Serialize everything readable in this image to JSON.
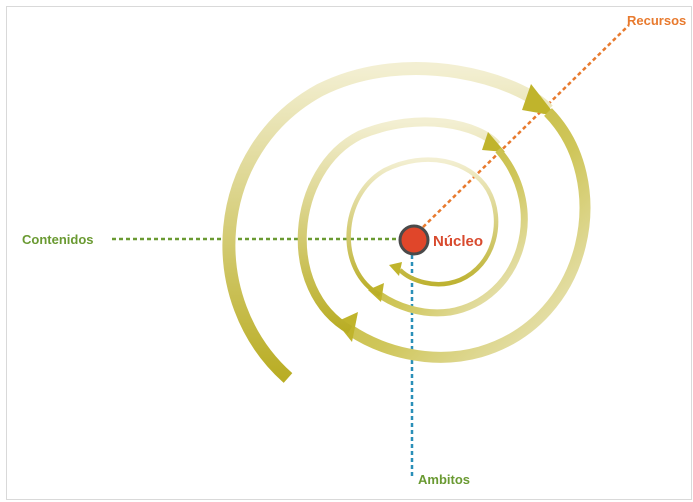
{
  "diagram": {
    "center_label": "Núcleo",
    "axes": [
      {
        "id": "recursos",
        "label": "Recursos",
        "color": "#e87a2e"
      },
      {
        "id": "contenidos",
        "label": "Contenidos",
        "color": "#6a9a32"
      },
      {
        "id": "ambitos",
        "label": "Ambitos",
        "color": "#2a8fb8"
      }
    ],
    "colors": {
      "spiral_dark": "#c0b42c",
      "spiral_light": "#f1ecc8",
      "nucleus_fill": "#e0462a",
      "nucleus_stroke": "#4a4a4a",
      "center_label": "#d84a2e"
    }
  }
}
